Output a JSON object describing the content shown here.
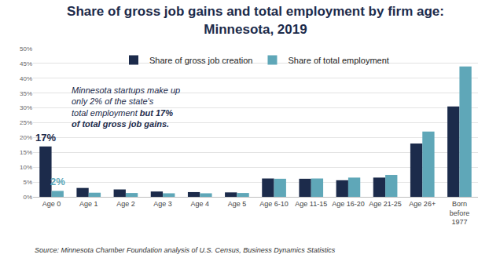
{
  "chart_data": {
    "type": "bar",
    "title": "Share of gross job gains and total employment by firm age: Minnesota, 2019",
    "categories": [
      "Age 0",
      "Age 1",
      "Age 2",
      "Age 3",
      "Age 4",
      "Age 5",
      "Age 6-10",
      "Age 11-15",
      "Age 16-20",
      "Age 21-25",
      "Age 26+",
      "Born before 1977"
    ],
    "series": [
      {
        "name": "Share of gross job creation",
        "color": "#1c2b4b",
        "values": [
          17,
          3,
          2.5,
          1.8,
          1.6,
          1.5,
          6.2,
          6.1,
          5.6,
          6.5,
          18,
          30.5
        ]
      },
      {
        "name": "Share of total employment",
        "color": "#5fa7b8",
        "values": [
          2,
          1.4,
          1.3,
          1.2,
          1.2,
          1.3,
          6.1,
          6.2,
          6.5,
          7.4,
          22,
          44
        ]
      }
    ],
    "ylim": [
      0,
      50
    ],
    "yticks": [
      {
        "value": 0,
        "label": "0%"
      },
      {
        "value": 5,
        "label": "5%"
      },
      {
        "value": 10,
        "label": "10%"
      },
      {
        "value": 15,
        "label": "15%"
      },
      {
        "value": 20,
        "label": "20%"
      },
      {
        "value": 25,
        "label": "25%"
      },
      {
        "value": 30,
        "label": "30%"
      },
      {
        "value": 35,
        "label": "35%"
      },
      {
        "value": 40,
        "label": "40%"
      },
      {
        "value": 45,
        "label": "45%"
      },
      {
        "value": 50,
        "label": "50%"
      }
    ],
    "grid": true,
    "legend": "top",
    "annotations": [
      {
        "text": "17%",
        "category": "Age 0",
        "series": "Share of gross job creation"
      },
      {
        "text": "2%",
        "category": "Age 0",
        "series": "Share of total employment"
      },
      {
        "text": "Minnesota startups make up only 2% of the state's total employment",
        "emphasis": "but 17% of total gross job gains."
      }
    ],
    "source": "Source: Minnesota Chamber Foundation analysis of U.S. Census, Business Dynamics Statistics"
  }
}
